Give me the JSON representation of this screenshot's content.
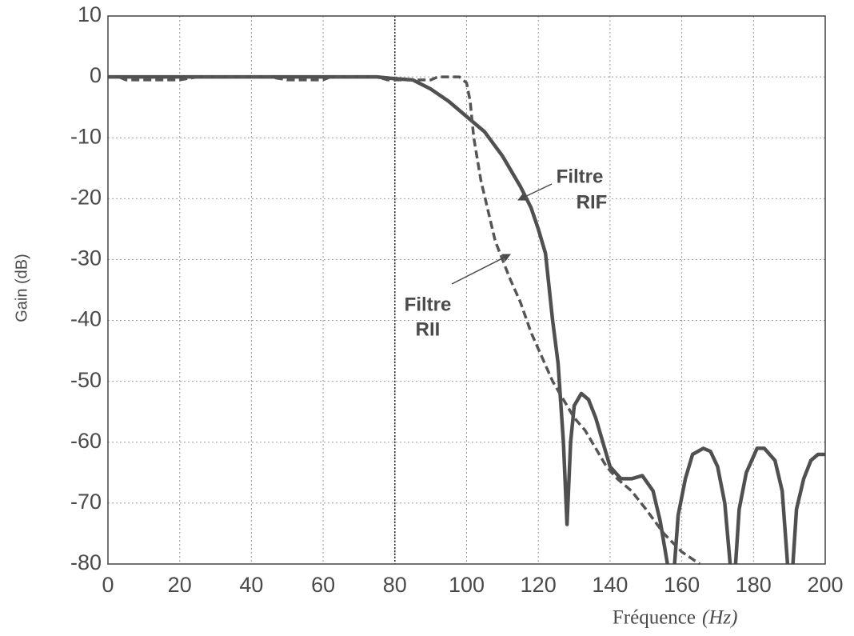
{
  "chart_data": {
    "type": "line",
    "y_label": "Gain (dB)",
    "x_label": "Fréquence",
    "x_label_unit": "(Hz)",
    "xlim": [
      0,
      200
    ],
    "ylim": [
      -80,
      10
    ],
    "xticks": [
      0,
      20,
      40,
      60,
      80,
      100,
      120,
      140,
      160,
      180,
      200
    ],
    "yticks": [
      -80,
      -70,
      -60,
      -50,
      -40,
      -30,
      -20,
      -10,
      0,
      10
    ],
    "grid": true,
    "cutoff_line": 80,
    "series": [
      {
        "style": "solid",
        "color": "#505050",
        "x": [
          0,
          20,
          40,
          60,
          75,
          80,
          85,
          90,
          95,
          100,
          105,
          110,
          115,
          118,
          120,
          122,
          124,
          125.5,
          127,
          128,
          129,
          130,
          132,
          134,
          136,
          138,
          140,
          143,
          146,
          149,
          152,
          154,
          156,
          157,
          158,
          159,
          161,
          163,
          166,
          168,
          170,
          172,
          173.5,
          174.5,
          175,
          176,
          178,
          181,
          183,
          186,
          188,
          189.5,
          190.5,
          191,
          192,
          194,
          196,
          198,
          200
        ],
        "values": [
          0,
          0,
          0,
          0,
          0,
          -0.3,
          -0.5,
          -2,
          -4,
          -6.5,
          -9,
          -13,
          -18,
          -21.5,
          -25,
          -29,
          -40,
          -47,
          -60,
          -73.5,
          -60,
          -54,
          -52,
          -53,
          -56,
          -60,
          -64,
          -66,
          -66,
          -65.5,
          -68,
          -73,
          -80,
          null,
          -80,
          -72,
          -66,
          -62,
          -61,
          -61.5,
          -64,
          -70,
          -80,
          null,
          -80,
          -71,
          -65,
          -61,
          -61,
          -63,
          -68,
          -80,
          null,
          -80,
          -71,
          -66,
          -63,
          -62,
          -62
        ]
      },
      {
        "style": "dashed",
        "color": "#555555",
        "x": [
          0,
          3,
          5,
          20,
          25,
          30,
          45,
          50,
          60,
          62,
          75,
          78,
          90,
          92,
          98,
          100,
          101,
          102,
          104,
          106,
          108,
          110,
          112,
          115,
          118,
          121,
          124,
          127,
          130,
          133,
          136,
          139,
          142,
          146,
          150,
          155,
          160,
          165
        ],
        "values": [
          0,
          0,
          -0.5,
          -0.5,
          0,
          0,
          0,
          -0.5,
          -0.5,
          0,
          0,
          -0.5,
          -0.5,
          0,
          0,
          -1,
          -4,
          -10,
          -17,
          -22,
          -27,
          -30,
          -33,
          -37,
          -42,
          -46,
          -50,
          -53,
          -56,
          -58,
          -61,
          -64,
          -66,
          -68,
          -71,
          -75,
          -78,
          -80
        ]
      }
    ],
    "annotations": [
      {
        "lines": [
          "Filtre",
          "RIF"
        ]
      },
      {
        "lines": [
          "Filtre",
          "RII"
        ]
      }
    ]
  }
}
